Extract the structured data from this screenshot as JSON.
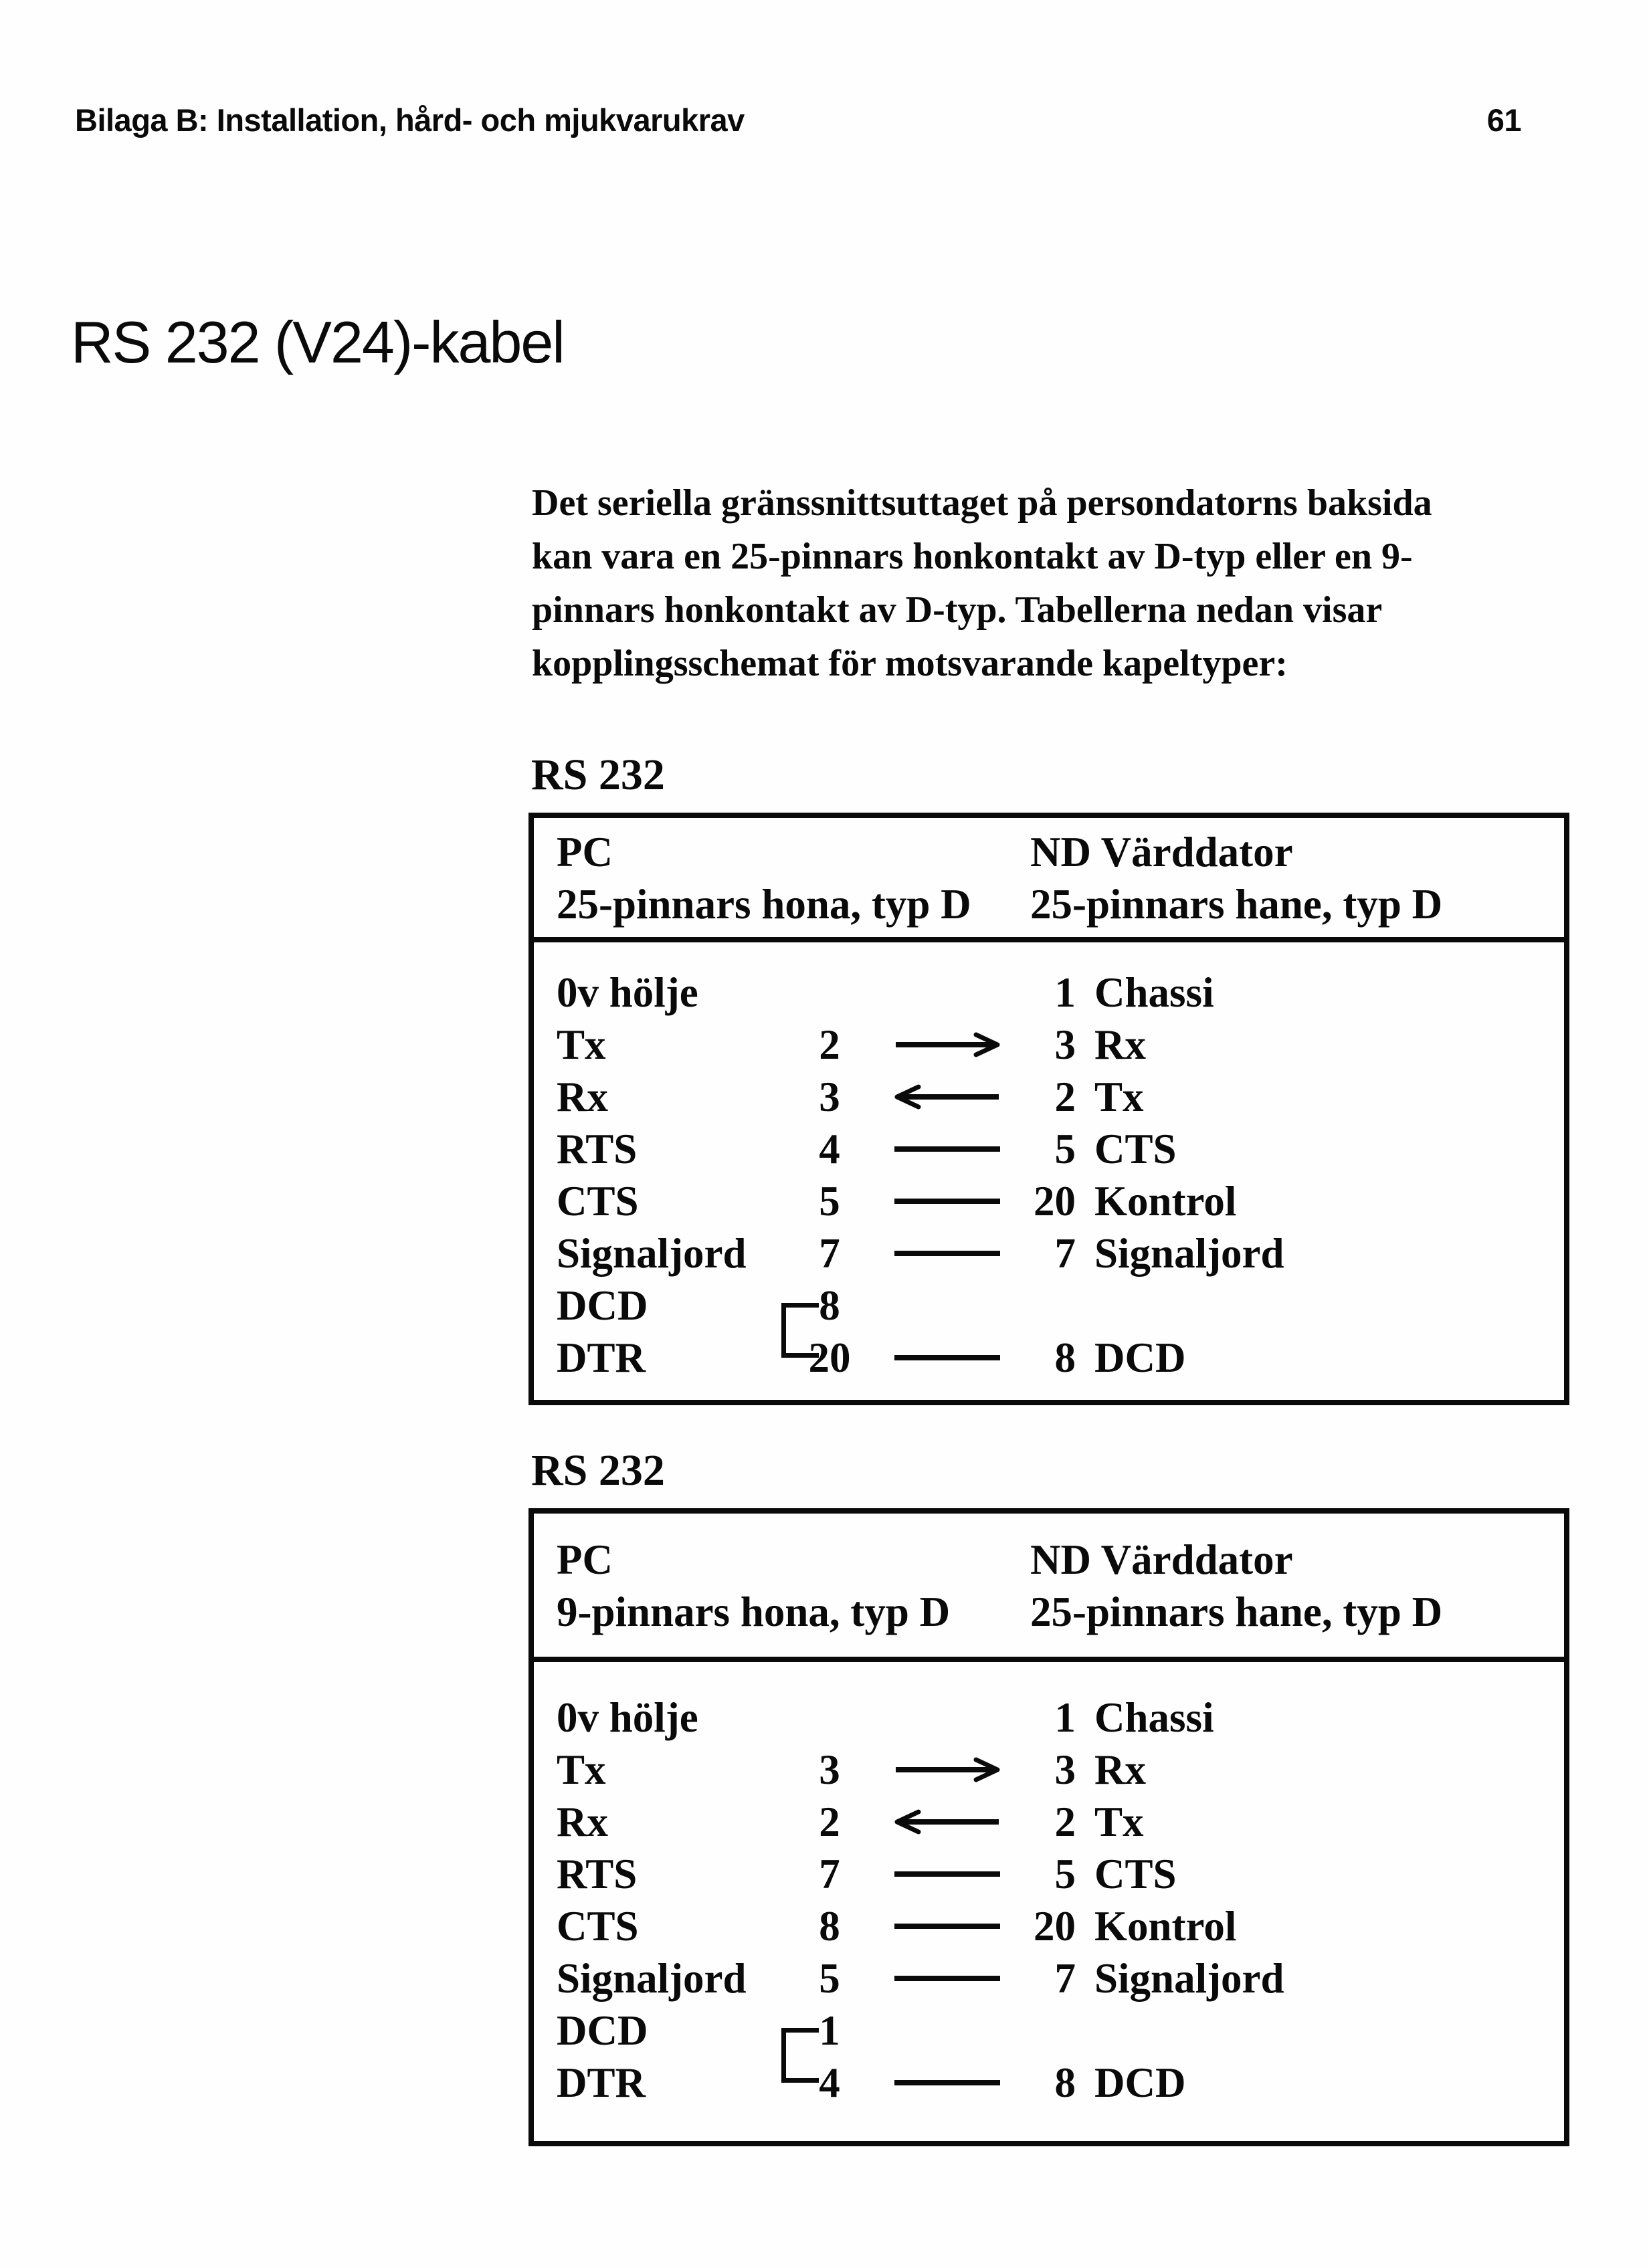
{
  "header": {
    "running_title": "Bilaga B: Installation, hård- och mjukvarukrav",
    "page_number": "61"
  },
  "section_title": "RS 232 (V24)-kabel",
  "intro_text": "Det seriella gränssnittsuttaget på persondatorns baksida\nkan vara en 25-pinnars honkontakt av D-typ eller en 9-\npinnars honkontakt av D-typ. Tabellerna nedan visar\nkopplingsschemat för motsvarande kapeltyper:",
  "colors": {
    "ink": "#0a0a0a",
    "paper": "#fefefe"
  },
  "tables": [
    {
      "label": "RS 232",
      "pc_title": "PC",
      "pc_subtitle": "25-pinnars hona, typ D",
      "nd_title": "ND Värddator",
      "nd_subtitle": "25-pinnars hane, typ D",
      "rows": [
        {
          "pc_signal": "0v hölje",
          "pc_pin": "",
          "connector": "none",
          "nd_pin": "1",
          "nd_signal": "Chassi"
        },
        {
          "pc_signal": "Tx",
          "pc_pin": "2",
          "connector": "arrow-right",
          "nd_pin": "3",
          "nd_signal": "Rx"
        },
        {
          "pc_signal": "Rx",
          "pc_pin": "3",
          "connector": "arrow-left",
          "nd_pin": "2",
          "nd_signal": "Tx"
        },
        {
          "pc_signal": "RTS",
          "pc_pin": "4",
          "connector": "line",
          "nd_pin": "5",
          "nd_signal": "CTS"
        },
        {
          "pc_signal": "CTS",
          "pc_pin": "5",
          "connector": "line",
          "nd_pin": "20",
          "nd_signal": "Kontrol"
        },
        {
          "pc_signal": "Signaljord",
          "pc_pin": "7",
          "connector": "line",
          "nd_pin": "7",
          "nd_signal": "Signaljord"
        },
        {
          "pc_signal": "DCD",
          "pc_pin": "8",
          "connector": "none",
          "nd_pin": "",
          "nd_signal": "",
          "strap": "start"
        },
        {
          "pc_signal": "DTR",
          "pc_pin": "20",
          "connector": "line",
          "nd_pin": "8",
          "nd_signal": "DCD",
          "strap": "end"
        }
      ]
    },
    {
      "label": "RS 232",
      "pc_title": "PC",
      "pc_subtitle": "9-pinnars hona, typ D",
      "nd_title": "ND Värddator",
      "nd_subtitle": "25-pinnars hane, typ D",
      "rows": [
        {
          "pc_signal": "0v hölje",
          "pc_pin": "",
          "connector": "none",
          "nd_pin": "1",
          "nd_signal": "Chassi"
        },
        {
          "pc_signal": "Tx",
          "pc_pin": "3",
          "connector": "arrow-right",
          "nd_pin": "3",
          "nd_signal": "Rx"
        },
        {
          "pc_signal": "Rx",
          "pc_pin": "2",
          "connector": "arrow-left",
          "nd_pin": "2",
          "nd_signal": "Tx"
        },
        {
          "pc_signal": "RTS",
          "pc_pin": "7",
          "connector": "line",
          "nd_pin": "5",
          "nd_signal": "CTS"
        },
        {
          "pc_signal": "CTS",
          "pc_pin": "8",
          "connector": "line",
          "nd_pin": "20",
          "nd_signal": "Kontrol"
        },
        {
          "pc_signal": "Signaljord",
          "pc_pin": "5",
          "connector": "line",
          "nd_pin": "7",
          "nd_signal": "Signaljord"
        },
        {
          "pc_signal": "DCD",
          "pc_pin": "1",
          "connector": "none",
          "nd_pin": "",
          "nd_signal": "",
          "strap": "start"
        },
        {
          "pc_signal": "DTR",
          "pc_pin": "4",
          "connector": "line",
          "nd_pin": "8",
          "nd_signal": "DCD",
          "strap": "end"
        }
      ]
    }
  ]
}
